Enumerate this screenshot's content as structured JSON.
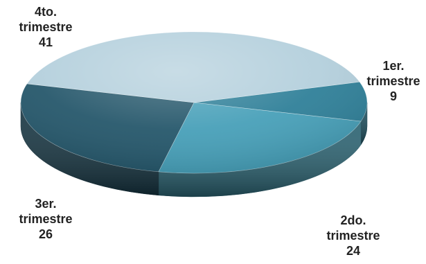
{
  "chart_data": {
    "type": "pie",
    "title": "",
    "three_d": true,
    "legend": "none",
    "categories": [
      "1er. trimestre",
      "2do. trimestre",
      "3er. trimestre",
      "4to. trimestre"
    ],
    "values": [
      9,
      24,
      26,
      41
    ],
    "slices": [
      {
        "category": "1er. trimestre",
        "line1": "1er.",
        "line2": "trimestre",
        "value_label": "9",
        "value": 9,
        "color": "#2E7F98"
      },
      {
        "category": "2do. trimestre",
        "line1": "2do.",
        "line2": "trimestre",
        "value_label": "24",
        "value": 24,
        "color": "#469FB8"
      },
      {
        "category": "3er. trimestre",
        "line1": "3er.",
        "line2": "trimestre",
        "value_label": "26",
        "value": 26,
        "color": "#24566A"
      },
      {
        "category": "4to. trimestre",
        "line1": "4to.",
        "line2": "trimestre",
        "value_label": "41",
        "value": 41,
        "color": "#B3CFDC"
      }
    ]
  }
}
